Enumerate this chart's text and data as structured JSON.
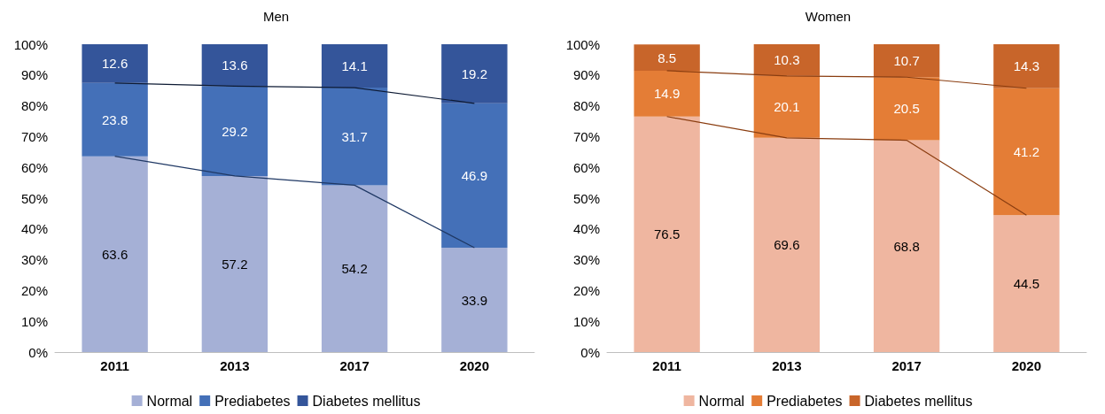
{
  "chart_data": [
    {
      "type": "bar",
      "title": "Men",
      "categories": [
        "2011",
        "2013",
        "2017",
        "2020"
      ],
      "stacked": true,
      "data_labels": true,
      "legend": "bottom",
      "grid": false,
      "ylim": [
        0,
        100
      ],
      "yticks": [
        {
          "value": 0,
          "label": "0%"
        },
        {
          "value": 10,
          "label": "10%"
        },
        {
          "value": 20,
          "label": "20%"
        },
        {
          "value": 30,
          "label": "30%"
        },
        {
          "value": 40,
          "label": "40%"
        },
        {
          "value": 50,
          "label": "50%"
        },
        {
          "value": 60,
          "label": "60%"
        },
        {
          "value": 70,
          "label": "70%"
        },
        {
          "value": 80,
          "label": "80%"
        },
        {
          "value": 90,
          "label": "90%"
        },
        {
          "value": 100,
          "label": "100%"
        }
      ],
      "series": [
        {
          "name": "Normal",
          "color": "#a5b0d6",
          "values": [
            63.6,
            57.2,
            54.2,
            33.9
          ]
        },
        {
          "name": "Prediabetes",
          "color": "#4470b8",
          "values": [
            23.8,
            29.2,
            31.7,
            46.9
          ]
        },
        {
          "name": "Diabetes mellitus",
          "color": "#34559a",
          "values": [
            12.6,
            13.6,
            14.1,
            19.2
          ]
        },
        {
          "type": "line",
          "color": "#1f3864",
          "values": [
            63.6,
            57.2,
            54.2,
            33.9
          ],
          "value_labels": [
            null,
            null,
            null,
            null
          ]
        },
        {
          "type": "line",
          "color": "#0d1a33",
          "values": [
            87.4,
            86.4,
            85.9,
            80.8
          ],
          "value_labels": [
            null,
            null,
            null,
            null
          ]
        }
      ]
    },
    {
      "type": "bar",
      "title": "Women",
      "categories": [
        "2011",
        "2013",
        "2017",
        "2020"
      ],
      "stacked": true,
      "data_labels": true,
      "legend": "bottom",
      "grid": false,
      "ylim": [
        0,
        100
      ],
      "yticks": [
        {
          "value": 0,
          "label": "0%"
        },
        {
          "value": 10,
          "label": "10%"
        },
        {
          "value": 20,
          "label": "20%"
        },
        {
          "value": 30,
          "label": "30%"
        },
        {
          "value": 40,
          "label": "40%"
        },
        {
          "value": 50,
          "label": "50%"
        },
        {
          "value": 60,
          "label": "60%"
        },
        {
          "value": 70,
          "label": "70%"
        },
        {
          "value": 80,
          "label": "80%"
        },
        {
          "value": 90,
          "label": "90%"
        },
        {
          "value": 100,
          "label": "100%"
        }
      ],
      "series": [
        {
          "name": "Normal",
          "color": "#efb6a0",
          "values": [
            76.5,
            69.6,
            68.8,
            44.5
          ]
        },
        {
          "name": "Prediabetes",
          "color": "#e47d36",
          "values": [
            14.9,
            20.1,
            20.5,
            41.2
          ]
        },
        {
          "name": "Diabetes mellitus",
          "color": "#c8652a",
          "values": [
            8.5,
            10.3,
            10.7,
            14.3
          ]
        },
        {
          "type": "line",
          "color": "#8a3d10",
          "values": [
            76.5,
            69.6,
            68.8,
            44.5
          ],
          "value_labels": [
            null,
            null,
            null,
            null
          ]
        },
        {
          "type": "line",
          "color": "#8a3d10",
          "values": [
            91.4,
            89.7,
            89.3,
            85.7
          ],
          "value_labels": [
            null,
            null,
            null,
            null
          ]
        }
      ]
    }
  ]
}
